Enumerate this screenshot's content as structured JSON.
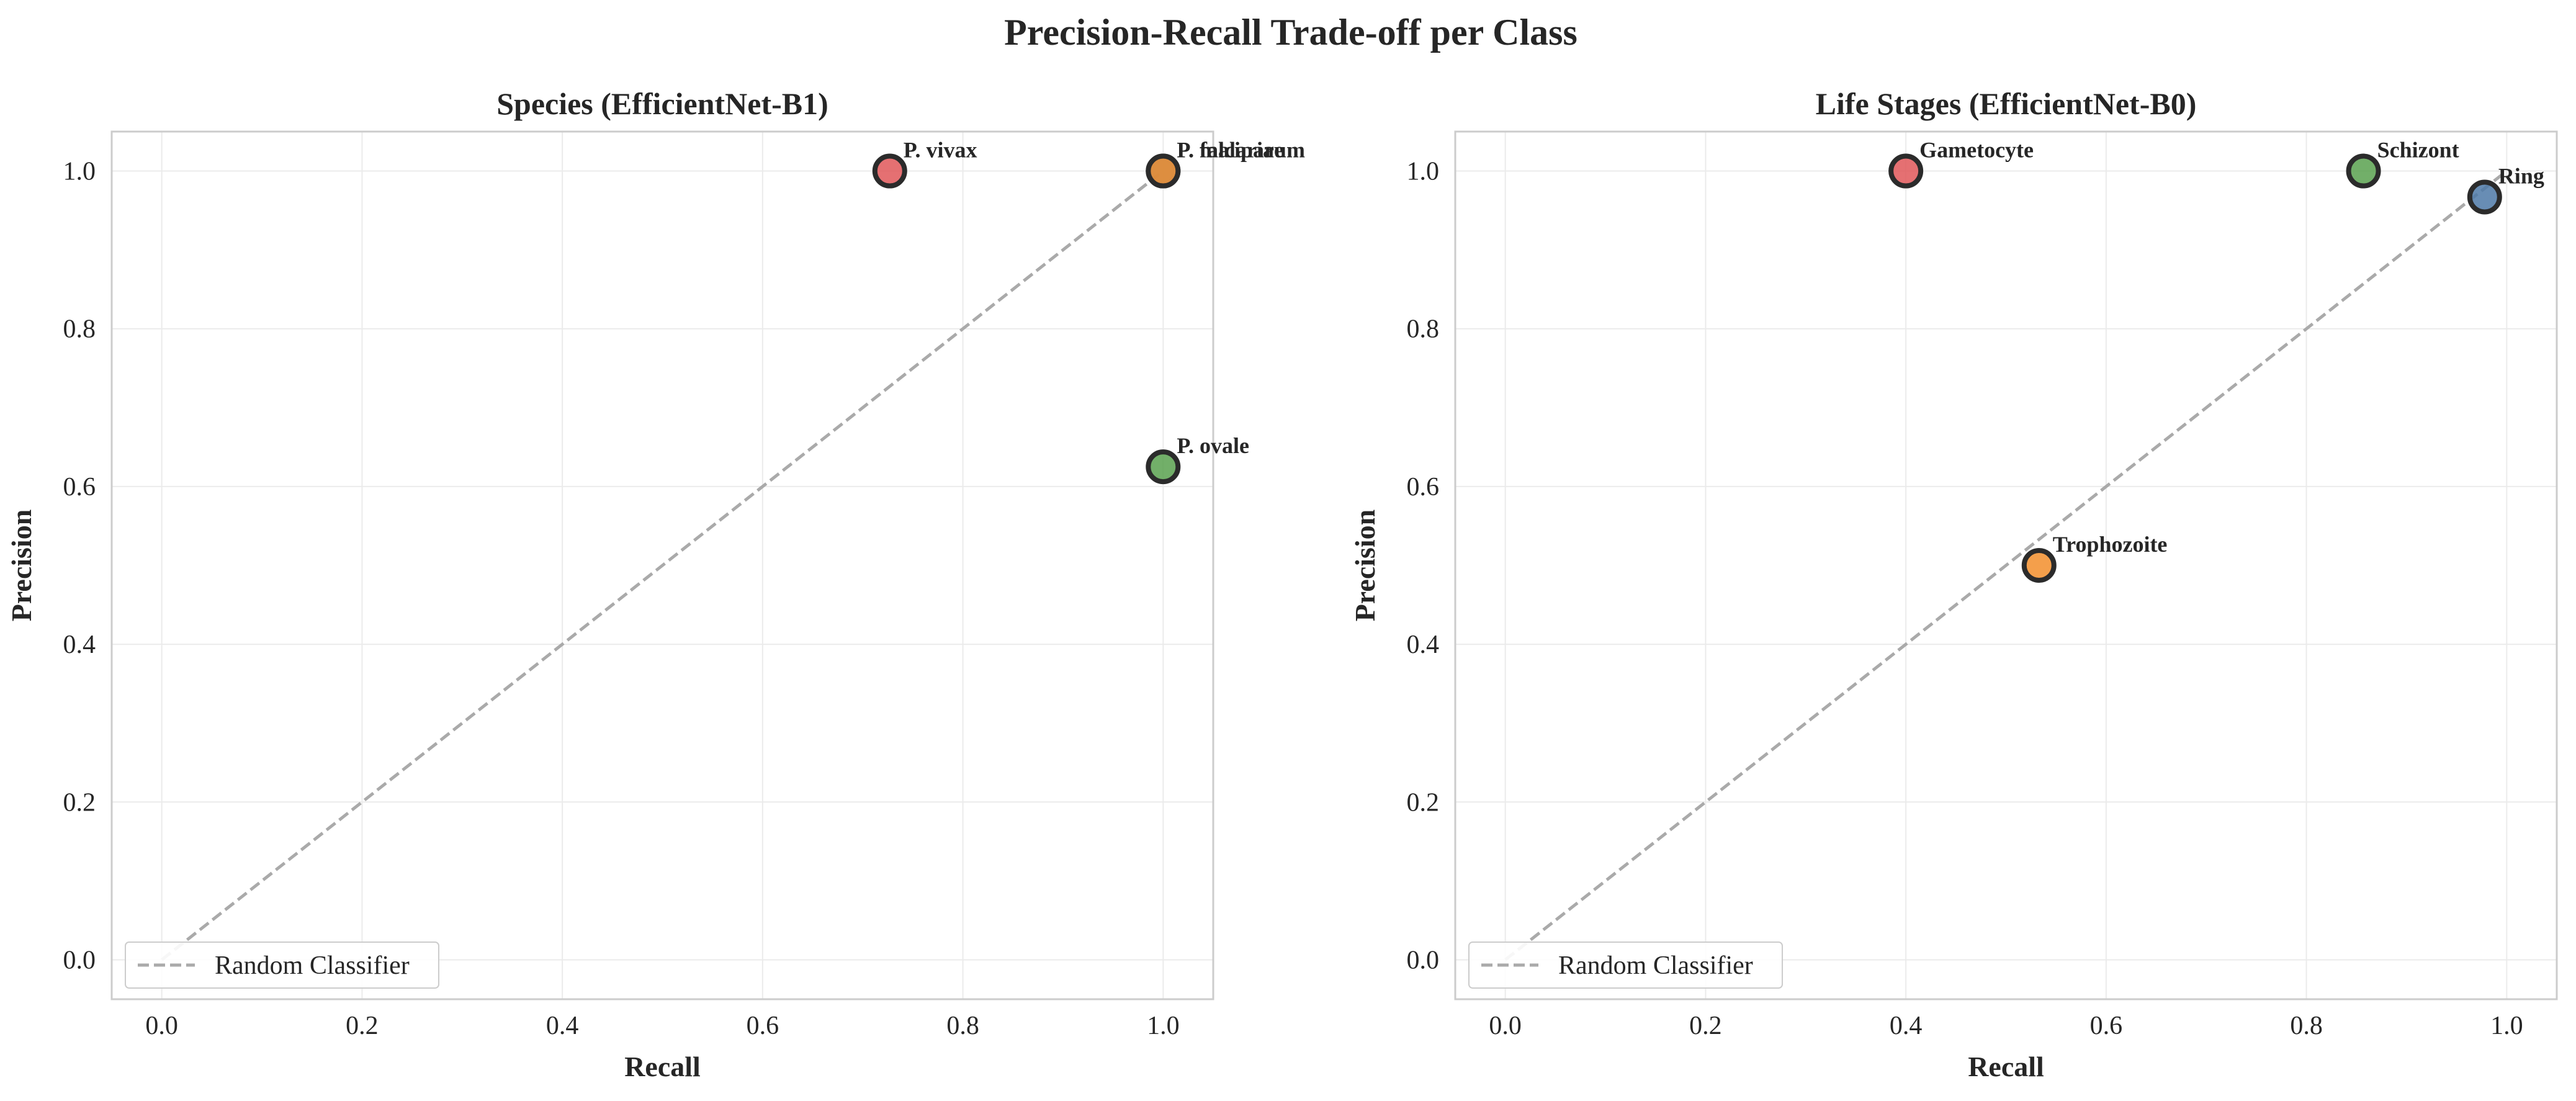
{
  "figure": {
    "title": "Precision-Recall Trade-off per Class"
  },
  "chart_data": [
    {
      "type": "scatter",
      "title": "Species (EfficientNet-B1)",
      "xlabel": "Recall",
      "ylabel": "Precision",
      "xlim": [
        -0.05,
        1.05
      ],
      "ylim": [
        -0.05,
        1.05
      ],
      "xticks": [
        "0.0",
        "0.2",
        "0.4",
        "0.6",
        "0.8",
        "1.0"
      ],
      "yticks": [
        "0.0",
        "0.2",
        "0.4",
        "0.6",
        "0.8",
        "1.0"
      ],
      "grid": true,
      "legend": {
        "position": "lower-left",
        "entries": [
          "Random Classifier"
        ]
      },
      "reference_line": {
        "name": "Random Classifier",
        "from": [
          0,
          0
        ],
        "to": [
          1,
          1
        ],
        "style": "dashed",
        "color": "#aaaaaa"
      },
      "points": [
        {
          "label": "P. vivax",
          "recall": 0.727,
          "precision": 1.0,
          "color": "#e15759"
        },
        {
          "label": "P. ovale",
          "recall": 1.0,
          "precision": 0.625,
          "color": "#59a14f"
        },
        {
          "label": "P. falciparum",
          "recall": 1.0,
          "precision": 1.0,
          "color": "#4e79a7"
        },
        {
          "label": "P. malariae",
          "recall": 1.0,
          "precision": 1.0,
          "color": "#f28e2b"
        }
      ]
    },
    {
      "type": "scatter",
      "title": "Life Stages (EfficientNet-B0)",
      "xlabel": "Recall",
      "ylabel": "Precision",
      "xlim": [
        -0.05,
        1.05
      ],
      "ylim": [
        -0.05,
        1.05
      ],
      "xticks": [
        "0.0",
        "0.2",
        "0.4",
        "0.6",
        "0.8",
        "1.0"
      ],
      "yticks": [
        "0.0",
        "0.2",
        "0.4",
        "0.6",
        "0.8",
        "1.0"
      ],
      "grid": true,
      "legend": {
        "position": "lower-left",
        "entries": [
          "Random Classifier"
        ]
      },
      "reference_line": {
        "name": "Random Classifier",
        "from": [
          0,
          0
        ],
        "to": [
          1,
          1
        ],
        "style": "dashed",
        "color": "#aaaaaa"
      },
      "points": [
        {
          "label": "Gametocyte",
          "recall": 0.4,
          "precision": 1.0,
          "color": "#e15759"
        },
        {
          "label": "Schizont",
          "recall": 0.857,
          "precision": 1.0,
          "color": "#59a14f"
        },
        {
          "label": "Ring",
          "recall": 0.978,
          "precision": 0.967,
          "color": "#4e79a7"
        },
        {
          "label": "Trophozoite",
          "recall": 0.533,
          "precision": 0.5,
          "color": "#f28e2b"
        }
      ]
    }
  ]
}
